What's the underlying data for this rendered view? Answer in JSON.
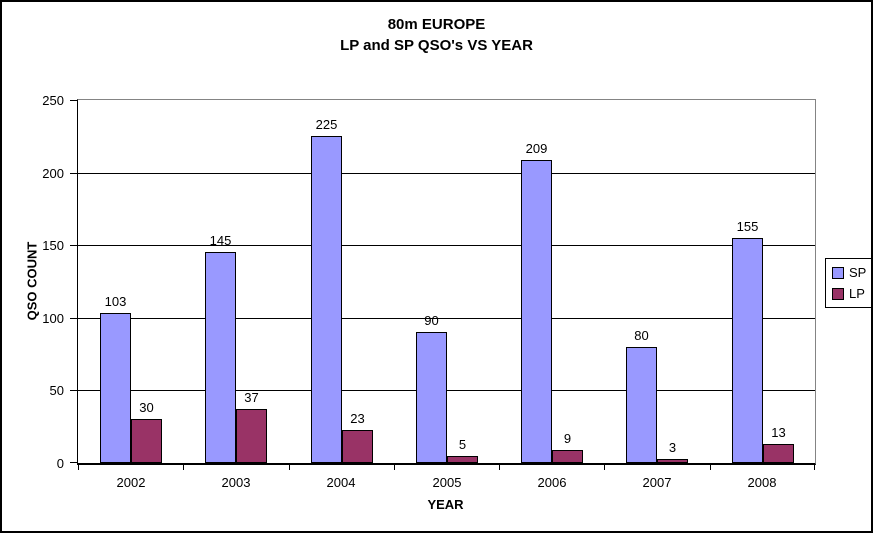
{
  "title": {
    "line1": "80m EUROPE",
    "line2": "LP and SP QSO's VS YEAR"
  },
  "chart_data": {
    "type": "bar",
    "title": "80m EUROPE LP and SP QSO's VS YEAR",
    "categories": [
      "2002",
      "2003",
      "2004",
      "2005",
      "2006",
      "2007",
      "2008"
    ],
    "series": [
      {
        "name": "SP",
        "color": "#9999FF",
        "values": [
          103,
          145,
          225,
          90,
          209,
          80,
          155
        ]
      },
      {
        "name": "LP",
        "color": "#993366",
        "values": [
          30,
          37,
          23,
          5,
          9,
          3,
          13
        ]
      }
    ],
    "xlabel": "YEAR",
    "ylabel": "QSO COUNT",
    "ylim": [
      0,
      250
    ],
    "y_ticks": [
      0,
      50,
      100,
      150,
      200,
      250
    ],
    "grid": true,
    "value_labels": true,
    "legend_position": "right",
    "bar_border_color": "#000000",
    "gridline_color": "#000000",
    "plot_border_color": "#848484"
  }
}
